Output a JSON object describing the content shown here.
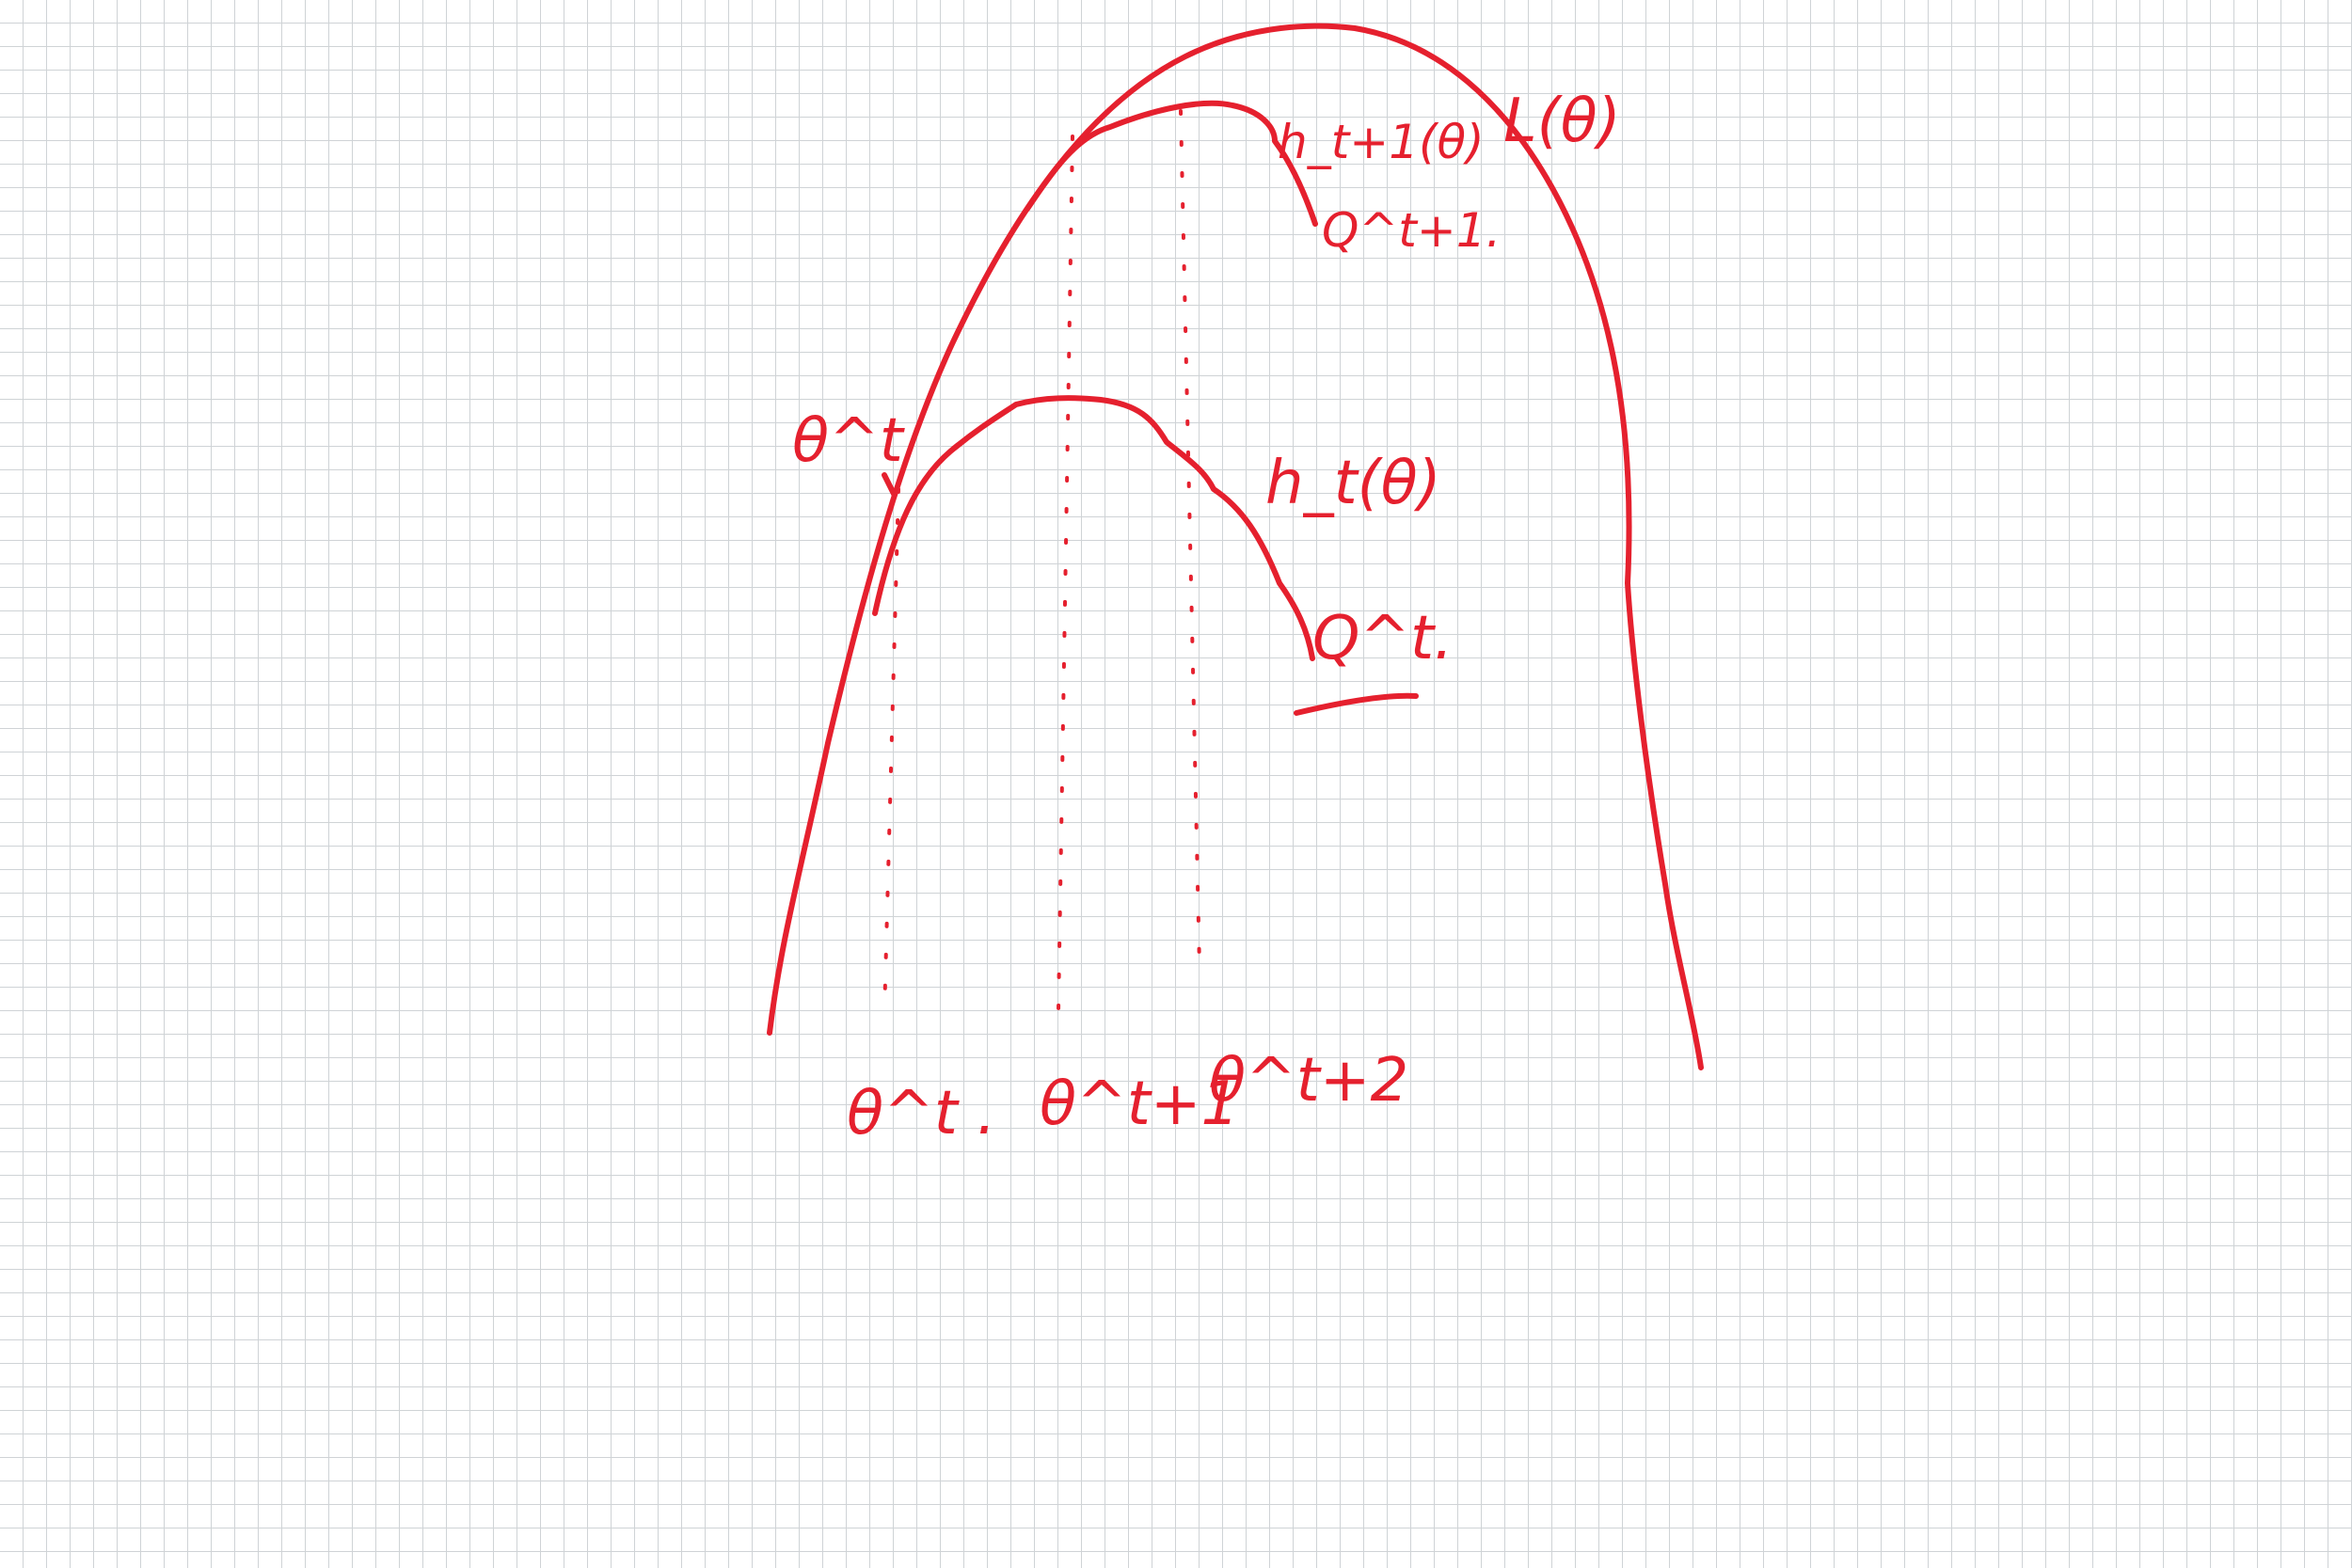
{
  "ink_color": "#e5202e",
  "curves": {
    "likelihood": {
      "label": "L(θ)"
    },
    "bound_t": {
      "label": "h_t(θ)",
      "subscript_set": "Q^t."
    },
    "bound_t1": {
      "label": "h_t+1(θ)",
      "subscript_set": "Q^t+1."
    }
  },
  "points": {
    "theta_t_on_curve": {
      "label": "θ^t"
    },
    "axis_theta_t": {
      "label": "θ^t ."
    },
    "axis_theta_t1": {
      "label": "θ^t+1"
    },
    "axis_theta_t2": {
      "label": "θ^t+2"
    }
  }
}
